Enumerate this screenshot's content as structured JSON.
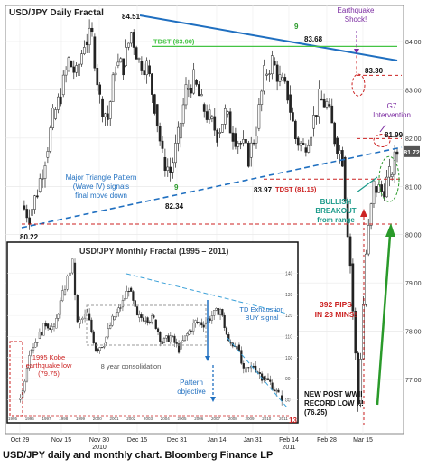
{
  "caption": "USD/JPY daily and monthly chart. Bloomberg Finance LP",
  "chart_data": [
    {
      "type": "candlestick",
      "title": "USD/JPY Daily Fractal",
      "x_ticks": [
        "Oct 29",
        "Nov 15",
        "Nov 30\n2010",
        "Dec 15",
        "Dec 31",
        "Jan 14",
        "Jan 31",
        "Feb 14\n2011",
        "Feb 28",
        "Mar 15"
      ],
      "y_ticks": [
        84.0,
        83.0,
        82.0,
        81.0,
        80.0,
        79.0,
        78.0,
        77.0
      ],
      "ylim": [
        76.25,
        84.6
      ],
      "last_price_label": "81.72",
      "close_path": [
        [
          "Oct 29",
          80.6
        ],
        [
          "Nov 01",
          80.4
        ],
        [
          "Nov 04",
          80.9
        ],
        [
          "Nov 08",
          81.6
        ],
        [
          "Nov 11",
          82.4
        ],
        [
          "Nov 15",
          82.9
        ],
        [
          "Nov 18",
          83.6
        ],
        [
          "Nov 22",
          83.3
        ],
        [
          "Nov 26",
          84.0
        ],
        [
          "Nov 30",
          84.1
        ],
        [
          "Dec 03",
          82.8
        ],
        [
          "Dec 06",
          82.4
        ],
        [
          "Dec 09",
          83.5
        ],
        [
          "Dec 13",
          83.5
        ],
        [
          "Dec 15",
          84.2
        ],
        [
          "Dec 17",
          83.6
        ],
        [
          "Dec 21",
          83.5
        ],
        [
          "Dec 24",
          82.7
        ],
        [
          "Dec 28",
          81.6
        ],
        [
          "Dec 31",
          81.3
        ],
        [
          "Jan 04",
          82.0
        ],
        [
          "Jan 07",
          83.0
        ],
        [
          "Jan 10",
          83.2
        ],
        [
          "Jan 14",
          82.7
        ],
        [
          "Jan 18",
          82.4
        ],
        [
          "Jan 21",
          82.1
        ],
        [
          "Jan 25",
          82.5
        ],
        [
          "Jan 28",
          82.1
        ],
        [
          "Jan 31",
          81.9
        ],
        [
          "Feb 03",
          81.6
        ],
        [
          "Feb 07",
          82.2
        ],
        [
          "Feb 10",
          83.3
        ],
        [
          "Feb 14",
          83.6
        ],
        [
          "Feb 17",
          83.2
        ],
        [
          "Feb 21",
          82.9
        ],
        [
          "Feb 24",
          82.0
        ],
        [
          "Feb 28",
          81.8
        ],
        [
          "Mar 03",
          82.2
        ],
        [
          "Mar 07",
          82.8
        ],
        [
          "Mar 10",
          82.7
        ],
        [
          "Mar 11",
          82.0
        ],
        [
          "Mar 14",
          81.6
        ],
        [
          "Mar 16",
          79.4
        ],
        [
          "Mar 17",
          76.5
        ],
        [
          "Mar 18",
          79.6
        ],
        [
          "Mar 21",
          81.0
        ],
        [
          "Mar 22",
          80.9
        ],
        [
          "Mar 23",
          81.2
        ],
        [
          "Mar 24",
          81.7
        ]
      ],
      "annotations": {
        "high_label": "84.51",
        "label_8368": "83.68",
        "tdst_line_label": "TDST (83.90)",
        "earthquake": "Earthquake\nShock!",
        "label_8330": "83.30",
        "g7": "G7\nIntervention",
        "label_8199": "81.99",
        "triangle_note": "Major Triangle Pattern\n(Wave IV) signals\nfinal move down",
        "count_nine": "9",
        "label_8234": "82.34",
        "label_8397": "83.97",
        "tdst_low_label": "TDST (81.15)",
        "breakout": "BULLISH\nBREAKOUT\nfrom range",
        "low_label": "80.22",
        "pips": "392 PIPS\nIN 23 MINS!",
        "record_low": "NEW POST WWII\nRECORD LOW !!!\n(76.25)"
      },
      "colors": {
        "trendline": "#1f6fc0",
        "tdst": "#44c444",
        "support": "#cc2222",
        "price_tag": "#555555"
      }
    },
    {
      "type": "candlestick",
      "title": "USD/JPY Monthly Fractal  (1995 – 2011)",
      "x_ticks": [
        "1995",
        "1996",
        "1997",
        "1998",
        "1999",
        "2000",
        "2001",
        "2002",
        "2003",
        "2004",
        "2005",
        "2006",
        "2007",
        "2008",
        "2009",
        "2010",
        "2011"
      ],
      "y_ticks": [
        140,
        130,
        120,
        110,
        100,
        90,
        80
      ],
      "ylim": [
        75,
        148
      ],
      "close_path": [
        [
          "1995.3",
          80.0
        ],
        [
          "1995.6",
          84.0
        ],
        [
          "1996",
          103.0
        ],
        [
          "1996.5",
          109.0
        ],
        [
          "1997",
          116.0
        ],
        [
          "1997.5",
          114.0
        ],
        [
          "1998",
          130.0
        ],
        [
          "1998.6",
          145.0
        ],
        [
          "1998.9",
          116.0
        ],
        [
          "1999.5",
          121.0
        ],
        [
          "2000",
          104.0
        ],
        [
          "2000.5",
          107.0
        ],
        [
          "2001",
          118.0
        ],
        [
          "2001.5",
          124.0
        ],
        [
          "2002",
          133.0
        ],
        [
          "2002.5",
          119.0
        ],
        [
          "2003",
          119.0
        ],
        [
          "2003.5",
          118.0
        ],
        [
          "2004",
          107.0
        ],
        [
          "2004.5",
          110.0
        ],
        [
          "2005",
          104.0
        ],
        [
          "2005.5",
          111.0
        ],
        [
          "2006",
          117.0
        ],
        [
          "2006.5",
          116.0
        ],
        [
          "2007",
          120.0
        ],
        [
          "2007.5",
          123.0
        ],
        [
          "2008",
          107.0
        ],
        [
          "2008.5",
          106.0
        ],
        [
          "2008.9",
          93.0
        ],
        [
          "2009.5",
          96.0
        ],
        [
          "2010",
          91.0
        ],
        [
          "2010.5",
          88.0
        ],
        [
          "2011",
          82.0
        ],
        [
          "2011.2",
          81.0
        ]
      ],
      "annotations": {
        "kobe": "1995 Kobe\nearthquake low\n(79.75)",
        "consolidation": "8 year consolidation",
        "td_exhaustion": "TD Exhaustion\nBUY signal",
        "pattern_objective": "Pattern\nobjective",
        "count_thirteen": "13"
      }
    }
  ]
}
